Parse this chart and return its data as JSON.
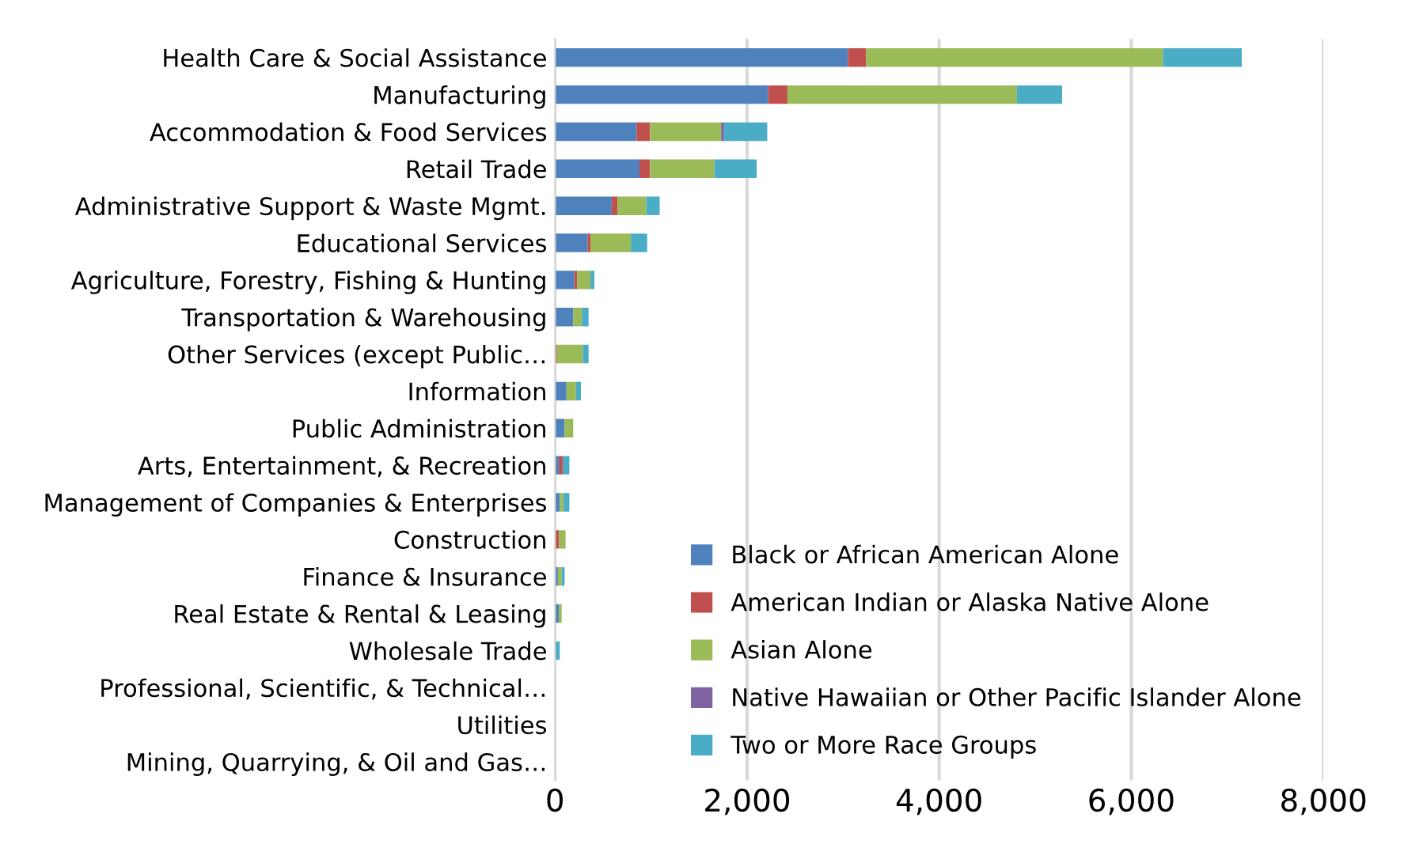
{
  "chart_data": {
    "type": "bar",
    "orientation": "horizontal",
    "stacked": true,
    "categories": [
      "Health Care & Social Assistance",
      "Manufacturing",
      "Accommodation & Food Services",
      "Retail Trade",
      "Administrative Support & Waste Mgmt.",
      "Educational Services",
      "Agriculture, Forestry, Fishing & Hunting",
      "Transportation & Warehousing",
      "Other Services (except Public…",
      "Information",
      "Public Administration",
      "Arts, Entertainment, & Recreation",
      "Management of Companies & Enterprises",
      "Construction",
      "Finance & Insurance",
      "Real Estate & Rental & Leasing",
      "Wholesale Trade",
      "Professional, Scientific, & Technical…",
      "Utilities",
      "Mining, Quarrying, & Oil and Gas…"
    ],
    "series": [
      {
        "name": "Black or African American Alone",
        "color": "#4f81bd",
        "values": [
          3050,
          2220,
          850,
          880,
          590,
          340,
          200,
          190,
          0,
          120,
          100,
          40,
          50,
          0,
          30,
          40,
          0,
          0,
          0,
          0
        ]
      },
      {
        "name": "American Indian or Alaska Native Alone",
        "color": "#c0504d",
        "values": [
          190,
          200,
          140,
          110,
          60,
          30,
          30,
          0,
          20,
          0,
          0,
          40,
          0,
          40,
          0,
          0,
          0,
          0,
          0,
          0
        ]
      },
      {
        "name": "Asian Alone",
        "color": "#9bbb59",
        "values": [
          3090,
          2390,
          740,
          670,
          300,
          420,
          140,
          90,
          270,
          100,
          90,
          0,
          40,
          70,
          40,
          30,
          0,
          0,
          0,
          0
        ]
      },
      {
        "name": "Native Hawaiian or Other Pacific Islander Alone",
        "color": "#8064a2",
        "values": [
          0,
          0,
          30,
          0,
          0,
          0,
          0,
          0,
          0,
          0,
          0,
          0,
          0,
          0,
          0,
          0,
          0,
          0,
          0,
          0
        ]
      },
      {
        "name": "Two or More Race Groups",
        "color": "#4bacc6",
        "values": [
          820,
          470,
          450,
          440,
          140,
          170,
          40,
          70,
          60,
          50,
          0,
          70,
          60,
          0,
          30,
          0,
          50,
          0,
          0,
          0
        ]
      }
    ],
    "xlim": [
      0,
      8000
    ],
    "xticks": [
      {
        "value": 0,
        "label": "0"
      },
      {
        "value": 2000,
        "label": "2,000"
      },
      {
        "value": 4000,
        "label": "4,000"
      },
      {
        "value": 6000,
        "label": "6,000"
      },
      {
        "value": 8000,
        "label": "8,000"
      }
    ],
    "grid": "x",
    "legend": "bottom right"
  }
}
